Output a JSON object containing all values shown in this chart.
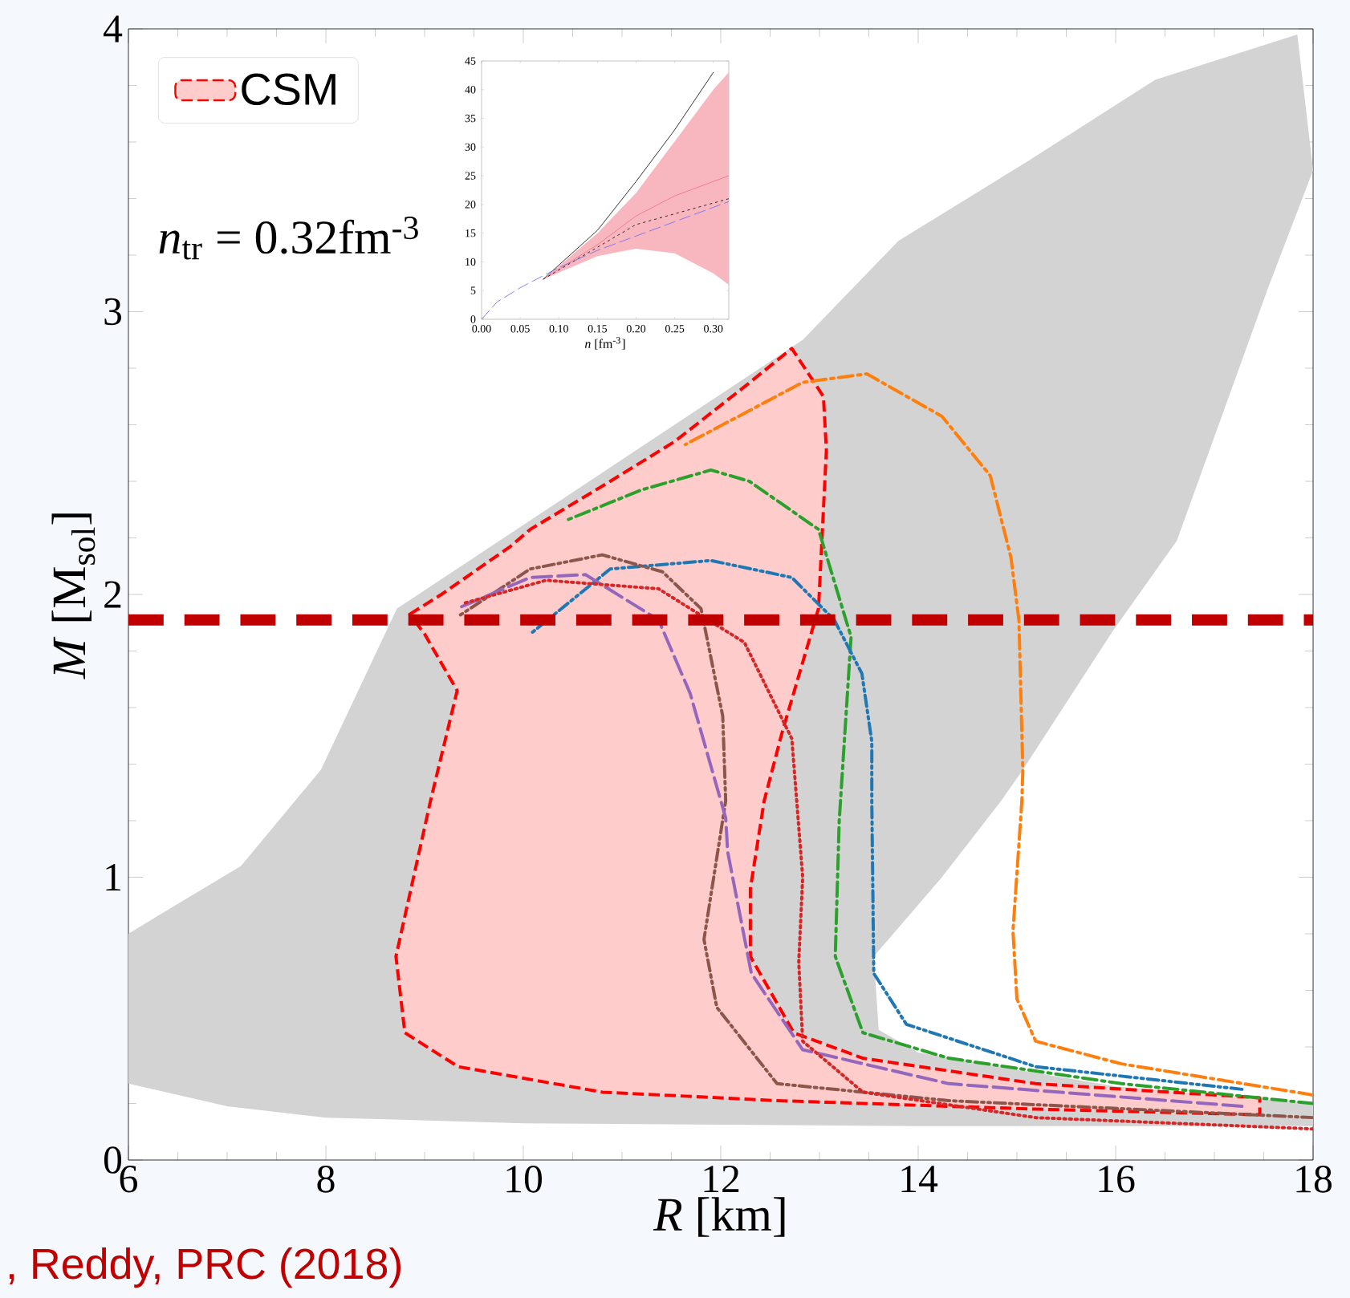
{
  "chart_data": [
    {
      "type": "line",
      "xlabel": "*R* [km]",
      "ylabel": "*M* [M$_{sol}$]",
      "xlim": [
        6,
        18
      ],
      "ylim": [
        0,
        4
      ],
      "xticks": [
        6,
        8,
        10,
        12,
        14,
        16,
        18
      ],
      "yticks": [
        0,
        1,
        2,
        3,
        4
      ],
      "legend": "top left",
      "annotations": [
        "*n*$_{tr}$ = 0.32fm$^{-3}$",
        ", Reddy, PRC (2018)"
      ],
      "ref_lines": [
        {
          "axis": "y",
          "value": 1.91,
          "color": "#c00000",
          "line_style": "dashed"
        }
      ],
      "series": [
        {
          "type": "area",
          "color": "#d3d3d3",
          "x": [
            6,
            7,
            8,
            10,
            14,
            18,
            18,
            16,
            14,
            13.6,
            13.55,
            14.24,
            14.84,
            15.06,
            15.97,
            16.62,
            17.54,
            18,
            17.84,
            16.4,
            15.1,
            13.8,
            12.83,
            8.72,
            7.95,
            7.14,
            6.33,
            6
          ],
          "values": [
            0.27,
            0.19,
            0.15,
            0.13,
            0.12,
            0.12,
            0.2,
            0.26,
            0.38,
            0.46,
            0.72,
            1.0,
            1.27,
            1.38,
            1.87,
            2.19,
            3.08,
            3.5,
            3.98,
            3.82,
            3.53,
            3.25,
            2.9,
            1.95,
            1.38,
            1.04,
            0.87,
            0.8
          ]
        },
        {
          "type": "area",
          "name": "CSM",
          "color": "#ff0000",
          "line_style": "dashed",
          "x": [
            8.85,
            9.17,
            9.87,
            10.07,
            10.88,
            11.53,
            12.26,
            12.72,
            13.04,
            13.07,
            12.99,
            12.62,
            12.44,
            12.3,
            12.3,
            12.74,
            13.44,
            15.19,
            17.46,
            17.46,
            15.19,
            12.57,
            10.8,
            9.34,
            8.8,
            8.71,
            9.06,
            9.33,
            9.0
          ],
          "values": [
            1.93,
            2.0,
            2.17,
            2.23,
            2.4,
            2.54,
            2.74,
            2.87,
            2.7,
            2.51,
            1.95,
            1.51,
            1.27,
            0.96,
            0.72,
            0.45,
            0.36,
            0.27,
            0.22,
            0.16,
            0.18,
            0.21,
            0.24,
            0.33,
            0.45,
            0.72,
            1.27,
            1.66,
            1.86
          ]
        },
        {
          "color": "#ff7f0e",
          "line_style": "dashdot",
          "x": [
            18,
            16.06,
            15.19,
            15.0,
            14.96,
            15.05,
            15.06,
            15.02,
            14.94,
            14.73,
            14.24,
            13.48,
            12.83,
            11.64
          ],
          "values": [
            0.23,
            0.34,
            0.42,
            0.57,
            0.81,
            1.27,
            1.38,
            1.91,
            2.13,
            2.42,
            2.63,
            2.78,
            2.75,
            2.53
          ]
        },
        {
          "color": "#2ca02c",
          "line_style": "dashdot",
          "x": [
            18,
            16.06,
            14.31,
            13.44,
            13.16,
            13.2,
            13.32,
            12.99,
            12.29,
            11.9,
            11.2,
            10.42
          ],
          "values": [
            0.2,
            0.27,
            0.36,
            0.45,
            0.72,
            1.2,
            1.85,
            2.23,
            2.4,
            2.44,
            2.37,
            2.26
          ]
        },
        {
          "color": "#1f77b4",
          "line_style": "dashdotdot",
          "x": [
            17.28,
            15.19,
            13.88,
            13.55,
            13.53,
            13.53,
            13.43,
            13.15,
            12.72,
            11.9,
            10.88,
            10.07
          ],
          "values": [
            0.25,
            0.33,
            0.48,
            0.66,
            1.27,
            1.48,
            1.72,
            1.91,
            2.06,
            2.12,
            2.09,
            1.86
          ]
        },
        {
          "color": "#8c564b",
          "line_style": "dashdotdot",
          "x": [
            18,
            14.31,
            12.57,
            11.96,
            11.83,
            12.05,
            12.02,
            11.8,
            11.41,
            10.8,
            10.07,
            9.33
          ],
          "values": [
            0.15,
            0.21,
            0.27,
            0.54,
            0.78,
            1.27,
            1.57,
            1.95,
            2.08,
            2.14,
            2.09,
            1.92
          ]
        },
        {
          "color": "#9467bd",
          "line_style": "longdash",
          "x": [
            17.28,
            14.31,
            12.83,
            12.31,
            12.07,
            12.05,
            11.69,
            11.37,
            10.63,
            10.07,
            9.33
          ],
          "values": [
            0.19,
            0.27,
            0.39,
            0.66,
            1.09,
            1.21,
            1.65,
            1.91,
            2.07,
            2.06,
            1.95
          ]
        },
        {
          "color": "#d62728",
          "line_style": "dotted",
          "x": [
            18,
            15.19,
            13.44,
            12.83,
            12.79,
            12.83,
            12.72,
            12.24,
            11.37,
            10.23,
            9.41
          ],
          "values": [
            0.11,
            0.15,
            0.24,
            0.42,
            0.7,
            1.0,
            1.49,
            1.83,
            2.02,
            2.05,
            1.97
          ]
        }
      ]
    },
    {
      "type": "line",
      "xlabel": "*n* [fm$^{-3}$]",
      "xlim": [
        0,
        0.32
      ],
      "ylim": [
        0,
        45
      ],
      "xticks": [
        {
          "value": 0,
          "label": "0.00"
        },
        {
          "value": 0.05,
          "label": "0.05"
        },
        {
          "value": 0.1,
          "label": "0.10"
        },
        {
          "value": 0.15,
          "label": "0.15"
        },
        {
          "value": 0.2,
          "label": "0.20"
        },
        {
          "value": 0.25,
          "label": "0.25"
        },
        {
          "value": 0.3,
          "label": "0.30"
        }
      ],
      "yticks": [
        0,
        5,
        10,
        15,
        20,
        25,
        30,
        35,
        40,
        45
      ],
      "series": [
        {
          "color": "#000000",
          "line_style": "solid",
          "x": [
            0.08,
            0.15,
            0.2,
            0.25,
            0.3
          ],
          "values": [
            7,
            15.5,
            24,
            33,
            43
          ]
        },
        {
          "color": "#f07080",
          "line_style": "solid",
          "x": [
            0.08,
            0.15,
            0.2,
            0.25,
            0.3,
            0.32
          ],
          "values": [
            7,
            13,
            18,
            21.5,
            24,
            25
          ],
          "lower": [
            7,
            11,
            12.3,
            11.5,
            8,
            6
          ],
          "upper": [
            7,
            15,
            22,
            31,
            40,
            43
          ]
        },
        {
          "color": "#000000",
          "line_style": "dotted",
          "x": [
            0.08,
            0.2,
            0.32
          ],
          "values": [
            7,
            16.5,
            21
          ]
        },
        {
          "color": "#6666ff",
          "line_style": "dashed",
          "x": [
            0,
            0.02,
            0.05,
            0.1,
            0.15,
            0.2,
            0.25,
            0.3,
            0.32
          ],
          "values": [
            0,
            3,
            5.5,
            9,
            12,
            14.5,
            17,
            19.5,
            20.5
          ]
        }
      ]
    }
  ]
}
